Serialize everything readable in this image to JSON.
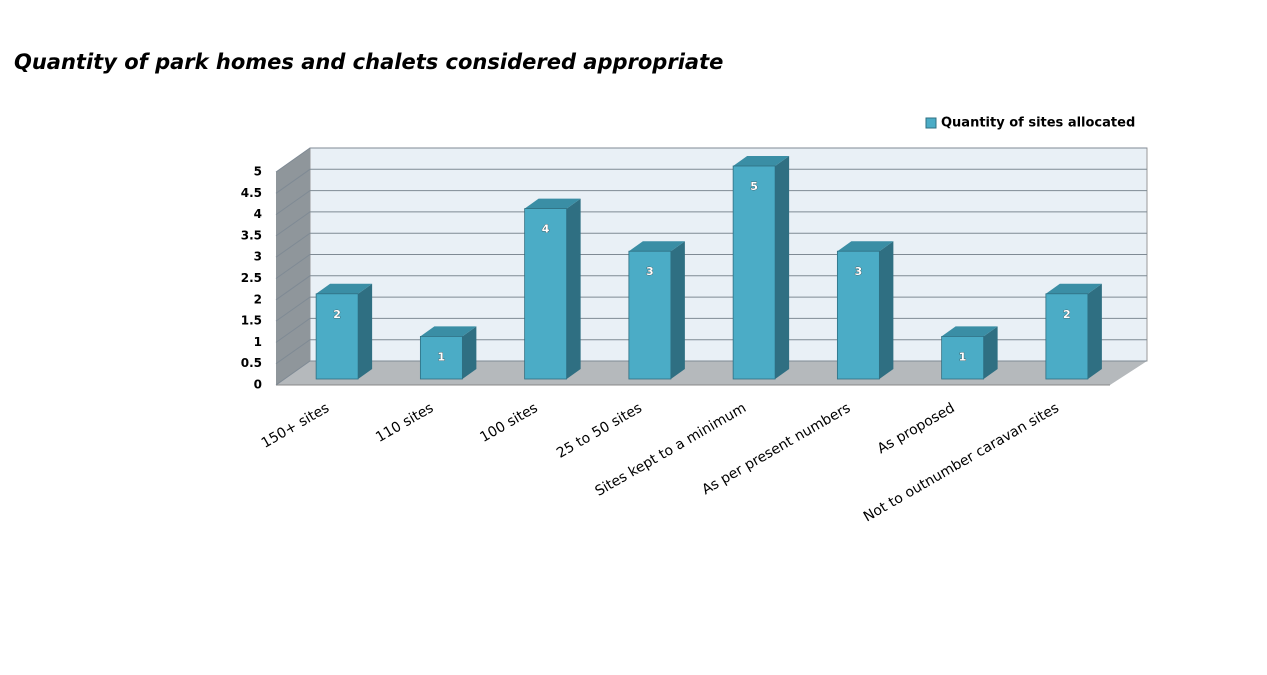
{
  "chart_data": {
    "type": "bar3d",
    "title": "Quantity of park homes and chalets considered appropriate",
    "categories": [
      "150+ sites",
      "110 sites",
      "100 sites",
      "25 to 50 sites",
      "Sites kept to a minimum",
      "As per present numbers",
      "As proposed",
      "Not to outnumber caravan sites"
    ],
    "series": [
      {
        "name": "Quantity of sites allocated",
        "color": "#4bacc6",
        "values": [
          2,
          1,
          4,
          3,
          5,
          3,
          1,
          2
        ]
      }
    ],
    "ylim": [
      0,
      5
    ],
    "yticks": [
      0,
      0.5,
      1,
      1.5,
      2,
      2.5,
      3,
      3.5,
      4,
      4.5,
      5
    ],
    "grid": true,
    "legend": "top-right"
  }
}
